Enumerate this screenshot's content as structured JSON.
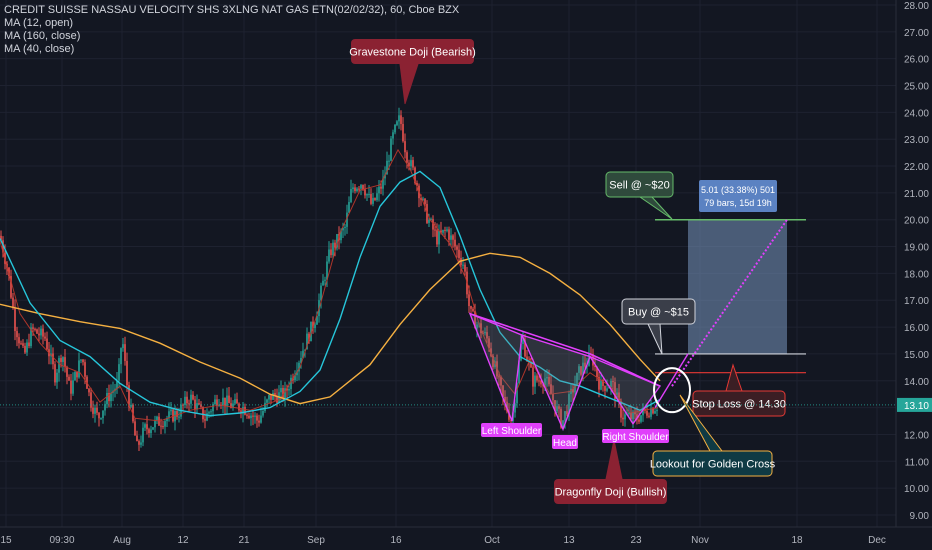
{
  "header": {
    "title": "CREDIT SUISSE NASSAU VELOCITY SHS 3XLNG NAT GAS ETN(02/02/32), 60, Cboe BZX",
    "indicators": [
      "MA (12, open)",
      "MA (160, close)",
      "MA (40, close)"
    ]
  },
  "chart_data": {
    "type": "candlestick",
    "y_ticks": [
      "9.00",
      "10.00",
      "11.00",
      "12.00",
      "13.00",
      "14.00",
      "15.00",
      "16.00",
      "17.00",
      "18.00",
      "19.00",
      "20.00",
      "21.00",
      "22.00",
      "23.00",
      "24.00",
      "25.00",
      "26.00",
      "27.00",
      "28.00"
    ],
    "x_ticks": [
      "15",
      "09:30",
      "Aug",
      "12",
      "21",
      "Sep",
      "16",
      "Oct",
      "13",
      "23",
      "Nov",
      "18",
      "Dec"
    ],
    "ylim": [
      8.55,
      28.2
    ],
    "last_price": "13.10",
    "colors": {
      "up": "#26a69a",
      "down": "#ef5350",
      "ma12": "#c0392b",
      "ma160": "#f5b041",
      "ma40": "#26c6da",
      "pattern": "#e040fb",
      "target": "#66bb6a",
      "stop": "#e53935"
    },
    "price_keypoints": [
      [
        0,
        19.4
      ],
      [
        8,
        18.1
      ],
      [
        15,
        16.1
      ],
      [
        24,
        14.9
      ],
      [
        32,
        15.9
      ],
      [
        45,
        15.6
      ],
      [
        55,
        14.2
      ],
      [
        62,
        15.1
      ],
      [
        70,
        13.6
      ],
      [
        82,
        14.9
      ],
      [
        90,
        13.3
      ],
      [
        98,
        12.6
      ],
      [
        108,
        13.4
      ],
      [
        118,
        13.9
      ],
      [
        122,
        15.7
      ],
      [
        128,
        13.5
      ],
      [
        137,
        11.5
      ],
      [
        145,
        12.2
      ],
      [
        160,
        12.5
      ],
      [
        178,
        12.8
      ],
      [
        190,
        13.4
      ],
      [
        205,
        12.6
      ],
      [
        218,
        13.4
      ],
      [
        230,
        13.1
      ],
      [
        244,
        13.0
      ],
      [
        258,
        12.5
      ],
      [
        270,
        13.4
      ],
      [
        285,
        13.5
      ],
      [
        300,
        14.9
      ],
      [
        315,
        16.3
      ],
      [
        330,
        18.8
      ],
      [
        345,
        19.7
      ],
      [
        352,
        21.2
      ],
      [
        362,
        21.4
      ],
      [
        372,
        20.5
      ],
      [
        383,
        21.4
      ],
      [
        393,
        23.1
      ],
      [
        400,
        23.8
      ],
      [
        406,
        22.5
      ],
      [
        414,
        21.7
      ],
      [
        426,
        20.2
      ],
      [
        437,
        19.3
      ],
      [
        447,
        19.6
      ],
      [
        455,
        19.0
      ],
      [
        464,
        18.3
      ],
      [
        470,
        16.5
      ],
      [
        488,
        15.5
      ],
      [
        503,
        13.3
      ],
      [
        512,
        12.5
      ],
      [
        522,
        15.6
      ],
      [
        533,
        14.0
      ],
      [
        545,
        14.1
      ],
      [
        562,
        12.4
      ],
      [
        572,
        13.6
      ],
      [
        580,
        14.4
      ],
      [
        592,
        14.9
      ],
      [
        600,
        13.8
      ],
      [
        612,
        13.9
      ],
      [
        622,
        12.7
      ],
      [
        636,
        12.6
      ],
      [
        648,
        12.9
      ],
      [
        658,
        13.1
      ]
    ],
    "moving_averages": [
      {
        "name": "MA (12, open)",
        "points": [
          [
            0,
            19.2
          ],
          [
            20,
            16.5
          ],
          [
            40,
            15.4
          ],
          [
            60,
            14.6
          ],
          [
            80,
            14.3
          ],
          [
            100,
            13.2
          ],
          [
            120,
            13.8
          ],
          [
            135,
            12.6
          ],
          [
            160,
            12.5
          ],
          [
            190,
            12.9
          ],
          [
            220,
            13.1
          ],
          [
            250,
            12.9
          ],
          [
            280,
            13.3
          ],
          [
            300,
            14.5
          ],
          [
            320,
            16.8
          ],
          [
            340,
            19.5
          ],
          [
            360,
            21.1
          ],
          [
            380,
            21.3
          ],
          [
            398,
            22.6
          ],
          [
            410,
            21.9
          ],
          [
            430,
            20.0
          ],
          [
            450,
            19.1
          ],
          [
            466,
            17.8
          ],
          [
            480,
            16.0
          ],
          [
            500,
            14.2
          ],
          [
            515,
            13.5
          ],
          [
            530,
            14.8
          ],
          [
            550,
            13.5
          ],
          [
            570,
            13.6
          ],
          [
            590,
            14.3
          ],
          [
            610,
            13.8
          ],
          [
            630,
            12.8
          ],
          [
            658,
            13.0
          ]
        ]
      },
      {
        "name": "MA (160, close)",
        "points": [
          [
            0,
            16.85
          ],
          [
            40,
            16.5
          ],
          [
            80,
            16.2
          ],
          [
            120,
            15.95
          ],
          [
            160,
            15.4
          ],
          [
            200,
            14.7
          ],
          [
            240,
            14.1
          ],
          [
            270,
            13.5
          ],
          [
            300,
            13.15
          ],
          [
            330,
            13.4
          ],
          [
            370,
            14.6
          ],
          [
            400,
            16.1
          ],
          [
            430,
            17.4
          ],
          [
            460,
            18.45
          ],
          [
            490,
            18.75
          ],
          [
            520,
            18.6
          ],
          [
            550,
            18.0
          ],
          [
            580,
            17.2
          ],
          [
            610,
            16.1
          ],
          [
            640,
            14.8
          ],
          [
            660,
            14.0
          ]
        ]
      },
      {
        "name": "MA (40, close)",
        "points": [
          [
            0,
            19.3
          ],
          [
            30,
            16.9
          ],
          [
            60,
            15.5
          ],
          [
            90,
            14.9
          ],
          [
            120,
            13.9
          ],
          [
            150,
            13.2
          ],
          [
            180,
            12.9
          ],
          [
            210,
            12.7
          ],
          [
            240,
            12.8
          ],
          [
            270,
            13.0
          ],
          [
            300,
            13.6
          ],
          [
            320,
            14.4
          ],
          [
            340,
            16.3
          ],
          [
            360,
            18.6
          ],
          [
            380,
            20.5
          ],
          [
            400,
            21.4
          ],
          [
            420,
            21.8
          ],
          [
            440,
            21.2
          ],
          [
            460,
            19.4
          ],
          [
            480,
            17.4
          ],
          [
            500,
            15.8
          ],
          [
            520,
            14.9
          ],
          [
            540,
            14.5
          ],
          [
            560,
            14.0
          ],
          [
            580,
            13.8
          ],
          [
            600,
            13.5
          ],
          [
            620,
            13.2
          ],
          [
            640,
            12.9
          ],
          [
            660,
            13.3
          ]
        ]
      }
    ],
    "pattern": {
      "neckline": [
        [
          470,
          16.5
        ],
        [
          590,
          15.0
        ],
        [
          660,
          13.8
        ]
      ],
      "left_shoulder": [
        [
          470,
          16.5
        ],
        [
          512,
          12.5
        ],
        [
          522,
          15.7
        ]
      ],
      "head": [
        [
          522,
          15.7
        ],
        [
          563,
          12.2
        ],
        [
          590,
          14.9
        ]
      ],
      "right_shoulder": [
        [
          590,
          14.9
        ],
        [
          633,
          12.4
        ],
        [
          660,
          13.8
        ]
      ]
    },
    "trade": {
      "x_start": 655,
      "x_end": 806,
      "entry": 15.0,
      "stop": 14.3,
      "target": 20.0,
      "box_x_start": 688,
      "box_x_end": 787,
      "measure": "5.01 (33.38%) 501",
      "measure_sub": "79 bars, 15d 19h"
    },
    "annotations": [
      {
        "id": "gravestone",
        "text": "Gravestone Doji (Bearish)"
      },
      {
        "id": "dragonfly",
        "text": "Dragonfly Doji (Bullish)"
      },
      {
        "id": "sell",
        "text": "Sell @ ~$20"
      },
      {
        "id": "buy",
        "text": "Buy @ ~$15"
      },
      {
        "id": "stop",
        "text": "Stop Loss @ 14.30"
      },
      {
        "id": "cross",
        "text": "Lookout for Golden Cross"
      },
      {
        "id": "ls",
        "text": "Left Shoulder"
      },
      {
        "id": "head",
        "text": "Head"
      },
      {
        "id": "rs",
        "text": "Right Shoulder"
      }
    ]
  }
}
